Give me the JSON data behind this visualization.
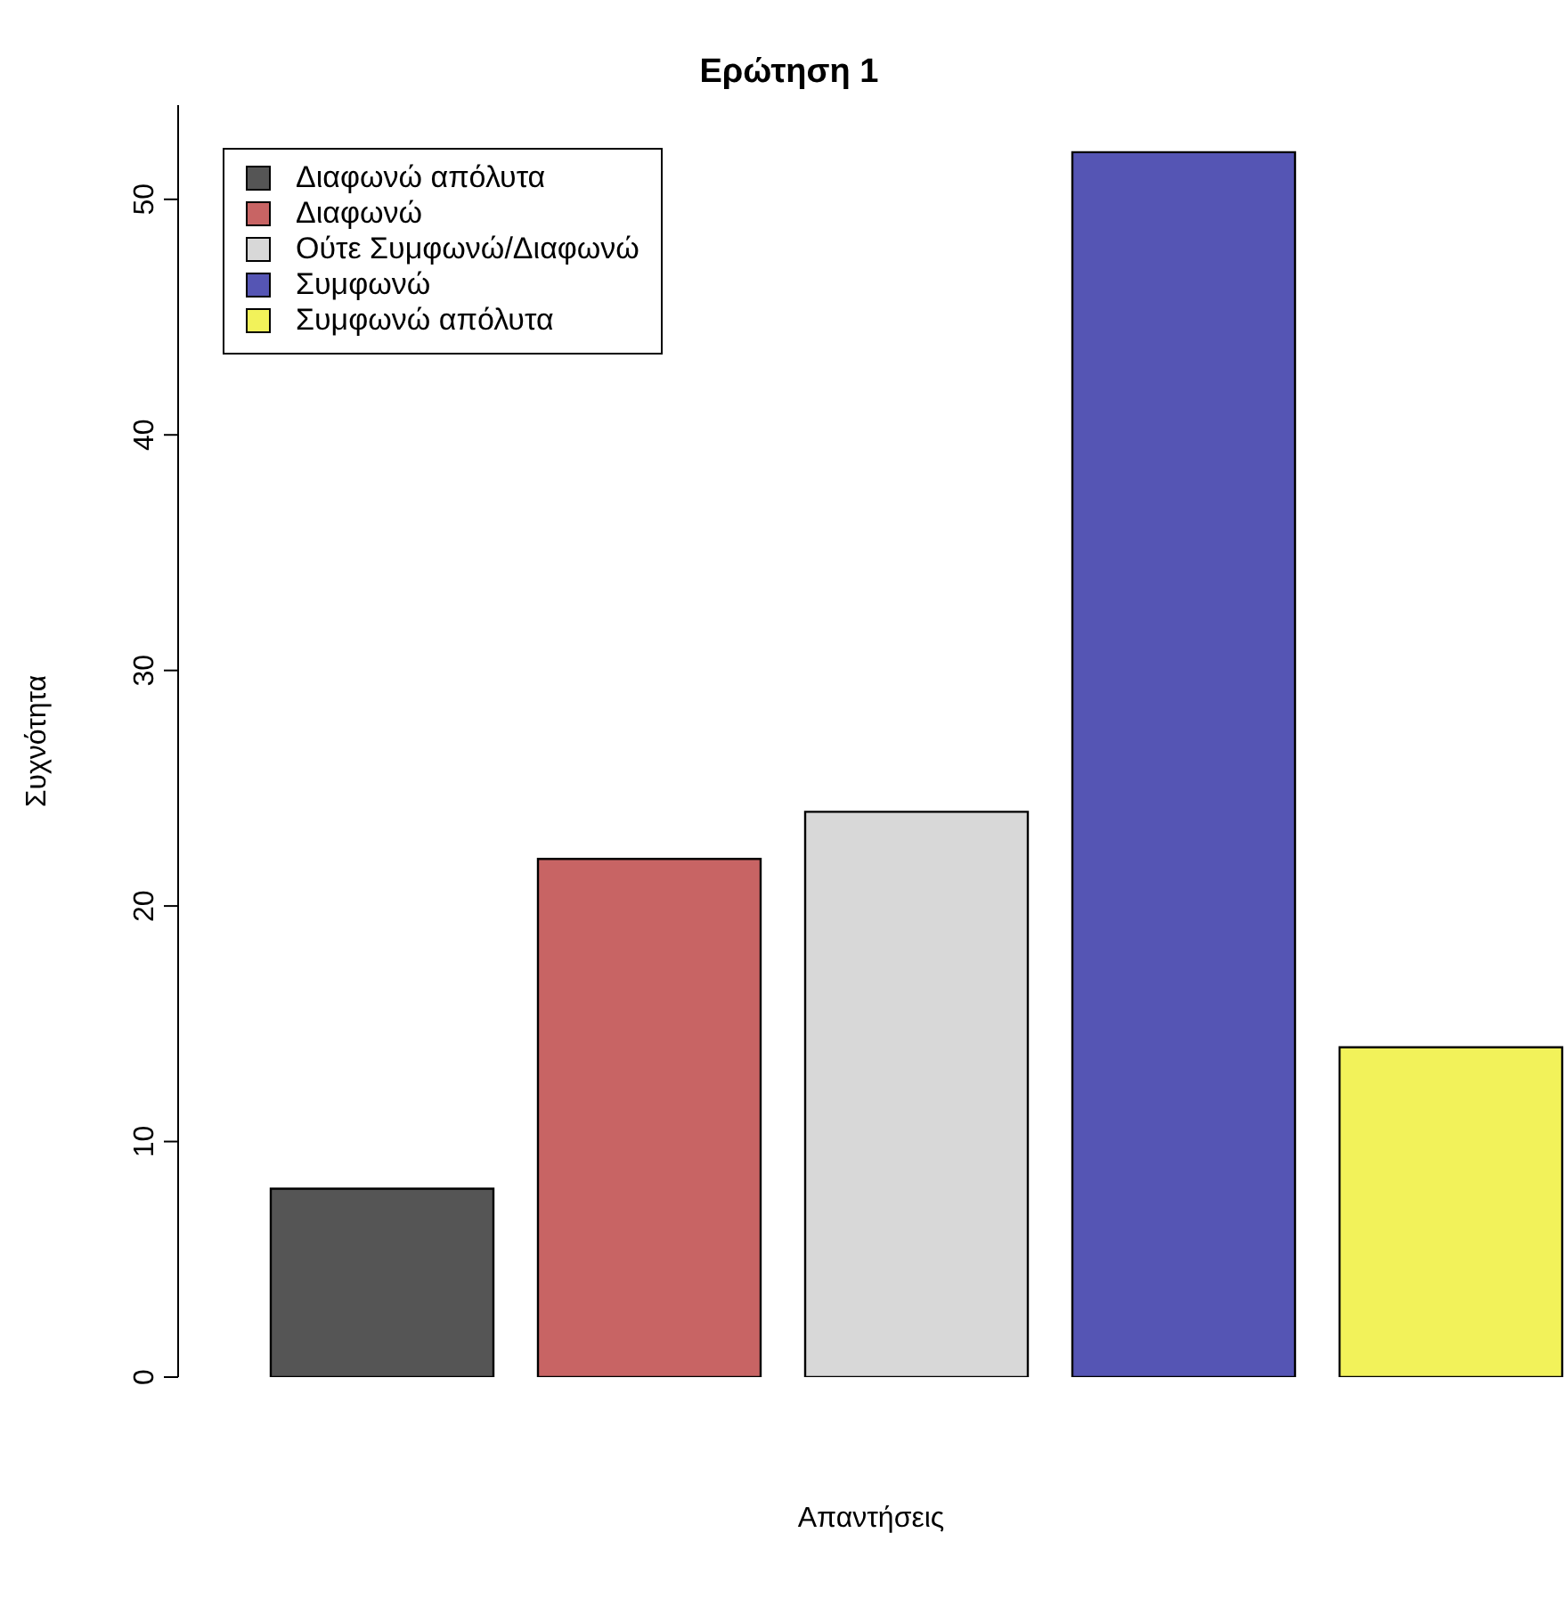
{
  "chart_data": {
    "type": "bar",
    "title": "Ερώτηση 1",
    "xlabel": "Απαντήσεις",
    "ylabel": "Συχνότητα",
    "categories": [
      null
    ],
    "series": [
      {
        "name": "Διαφωνώ απόλυτα",
        "color": "#555555",
        "values": [
          8
        ]
      },
      {
        "name": "Διαφωνώ",
        "color": "#c86464",
        "values": [
          22
        ]
      },
      {
        "name": "Ούτε Συμφωνώ/Διαφωνώ",
        "color": "#d8d8d8",
        "values": [
          24
        ]
      },
      {
        "name": "Συμφωνώ",
        "color": "#5555b4",
        "values": [
          52
        ]
      },
      {
        "name": "Συμφωνώ απόλυτα",
        "color": "#f2f25a",
        "values": [
          14
        ]
      }
    ],
    "ylim": [
      0,
      54
    ],
    "yticks": [
      0,
      10,
      20,
      30,
      40,
      50
    ],
    "legend": "top left",
    "grid": false
  }
}
